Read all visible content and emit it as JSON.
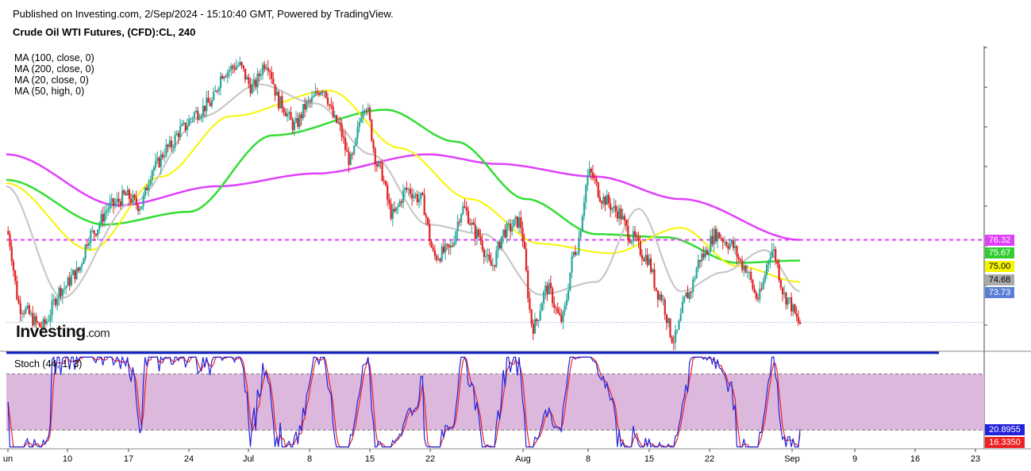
{
  "header": {
    "published": "Published on Investing.com, 2/Sep/2024 - 15:10:40 GMT, Powered by TradingView.",
    "instrument": "Crude Oil WTI Futures, (CFD):CL, 240"
  },
  "legend": {
    "ma100": "MA (100, close, 0)",
    "ma200": "MA (200, close, 0)",
    "ma20": "MA (20, close, 0)",
    "ma50": "MA (50, high, 0)"
  },
  "watermark": {
    "brand": "Investing",
    "suffix": ".com"
  },
  "stoch_label": "Stoch (44, 1, 3)",
  "price_tags": [
    {
      "text": "76.32",
      "color": "#e040fb"
    },
    {
      "text": "75.67",
      "color": "#33cc33"
    },
    {
      "text": "75.00",
      "color": "#f5f500"
    },
    {
      "text": "74.68",
      "color": "#aaaaaa"
    },
    {
      "text": "73.73",
      "color": "#5b7fd6"
    }
  ],
  "stoch_tags": [
    {
      "text": "20.8955",
      "color": "#2222dd"
    },
    {
      "text": "16.3350",
      "color": "#ee2222"
    }
  ],
  "x_ticks": [
    "un",
    "10",
    "17",
    "24",
    "Jul",
    "8",
    "15",
    "22",
    "Aug",
    "8",
    "15",
    "22",
    "Sep",
    "9",
    "16",
    "23"
  ],
  "colors": {
    "up": "#26a69a",
    "down": "#e02020",
    "ma20": "#c8c8c8",
    "ma50": "#f5f500",
    "ma100": "#33dd33",
    "ma200": "#e040fb",
    "support": "#1020c0",
    "stoch_band": "#dcb8dc",
    "stoch_k": "#2222dd",
    "stoch_d": "#ee2222"
  },
  "chart_data": {
    "type": "candlestick",
    "title": "Crude Oil WTI Futures, (CFD):CL, 240",
    "price_range": [
      72.9,
      82.4
    ],
    "annotations": {
      "resistance_dashed": 76.32,
      "support_solid": 72.78
    },
    "close_path": [
      [
        0,
        76.6
      ],
      [
        2,
        74.2
      ],
      [
        5,
        73.6
      ],
      [
        8,
        74.8
      ],
      [
        10,
        75.3
      ],
      [
        12,
        76.5
      ],
      [
        15,
        77.4
      ],
      [
        17,
        77.7
      ],
      [
        19,
        77.4
      ],
      [
        21,
        78.6
      ],
      [
        23,
        79.2
      ],
      [
        25,
        79.8
      ],
      [
        27,
        80.3
      ],
      [
        29,
        80.6
      ],
      [
        31,
        81.6
      ],
      [
        33,
        81.8
      ],
      [
        35,
        81.1
      ],
      [
        37,
        81.9
      ],
      [
        39,
        80.6
      ],
      [
        41,
        79.9
      ],
      [
        43,
        80.6
      ],
      [
        45,
        81.1
      ],
      [
        47,
        80.0
      ],
      [
        49,
        78.8
      ],
      [
        51,
        80.6
      ],
      [
        53,
        78.6
      ],
      [
        55,
        77.1
      ],
      [
        57,
        77.9
      ],
      [
        59,
        77.6
      ],
      [
        61,
        75.8
      ],
      [
        63,
        76.0
      ],
      [
        65,
        77.3
      ],
      [
        67,
        76.5
      ],
      [
        69,
        75.5
      ],
      [
        71,
        76.6
      ],
      [
        73,
        76.9
      ],
      [
        75,
        73.6
      ],
      [
        77,
        74.8
      ],
      [
        79,
        73.8
      ],
      [
        81,
        76.0
      ],
      [
        83,
        78.4
      ],
      [
        85,
        77.6
      ],
      [
        87,
        77.2
      ],
      [
        89,
        76.4
      ],
      [
        91,
        75.8
      ],
      [
        93,
        74.6
      ],
      [
        95,
        73.2
      ],
      [
        97,
        74.6
      ],
      [
        99,
        75.8
      ],
      [
        101,
        76.5
      ],
      [
        103,
        76.2
      ],
      [
        105,
        75.5
      ],
      [
        107,
        74.5
      ],
      [
        109,
        76.0
      ],
      [
        111,
        74.5
      ],
      [
        113,
        73.7
      ]
    ],
    "ma20_path": [
      [
        0,
        78.0
      ],
      [
        8,
        74.5
      ],
      [
        18,
        77.5
      ],
      [
        28,
        80.2
      ],
      [
        36,
        81.2
      ],
      [
        44,
        80.6
      ],
      [
        52,
        79.0
      ],
      [
        60,
        76.8
      ],
      [
        68,
        76.5
      ],
      [
        76,
        74.6
      ],
      [
        84,
        75.0
      ],
      [
        90,
        77.3
      ],
      [
        96,
        74.7
      ],
      [
        102,
        75.3
      ],
      [
        108,
        76.0
      ],
      [
        113,
        74.7
      ]
    ],
    "ma50_path": [
      [
        0,
        78.1
      ],
      [
        12,
        76.0
      ],
      [
        22,
        78.3
      ],
      [
        32,
        80.2
      ],
      [
        46,
        81.0
      ],
      [
        56,
        79.2
      ],
      [
        66,
        77.6
      ],
      [
        76,
        76.2
      ],
      [
        86,
        75.9
      ],
      [
        96,
        76.7
      ],
      [
        104,
        75.5
      ],
      [
        113,
        75.0
      ]
    ],
    "ma100_path": [
      [
        0,
        78.2
      ],
      [
        14,
        76.8
      ],
      [
        26,
        77.2
      ],
      [
        38,
        79.6
      ],
      [
        54,
        80.4
      ],
      [
        64,
        79.4
      ],
      [
        74,
        77.6
      ],
      [
        84,
        76.5
      ],
      [
        94,
        76.4
      ],
      [
        104,
        75.6
      ],
      [
        113,
        75.67
      ]
    ],
    "ma200_path": [
      [
        0,
        79.0
      ],
      [
        16,
        77.4
      ],
      [
        30,
        78.0
      ],
      [
        44,
        78.4
      ],
      [
        60,
        79.0
      ],
      [
        70,
        78.7
      ],
      [
        84,
        78.3
      ],
      [
        96,
        77.6
      ],
      [
        113,
        76.32
      ]
    ],
    "stoch_range": [
      0,
      100
    ],
    "stoch_levels": {
      "upper": 80,
      "lower": 20
    },
    "stoch_k_last": 20.8955,
    "stoch_d_last": 16.335
  }
}
